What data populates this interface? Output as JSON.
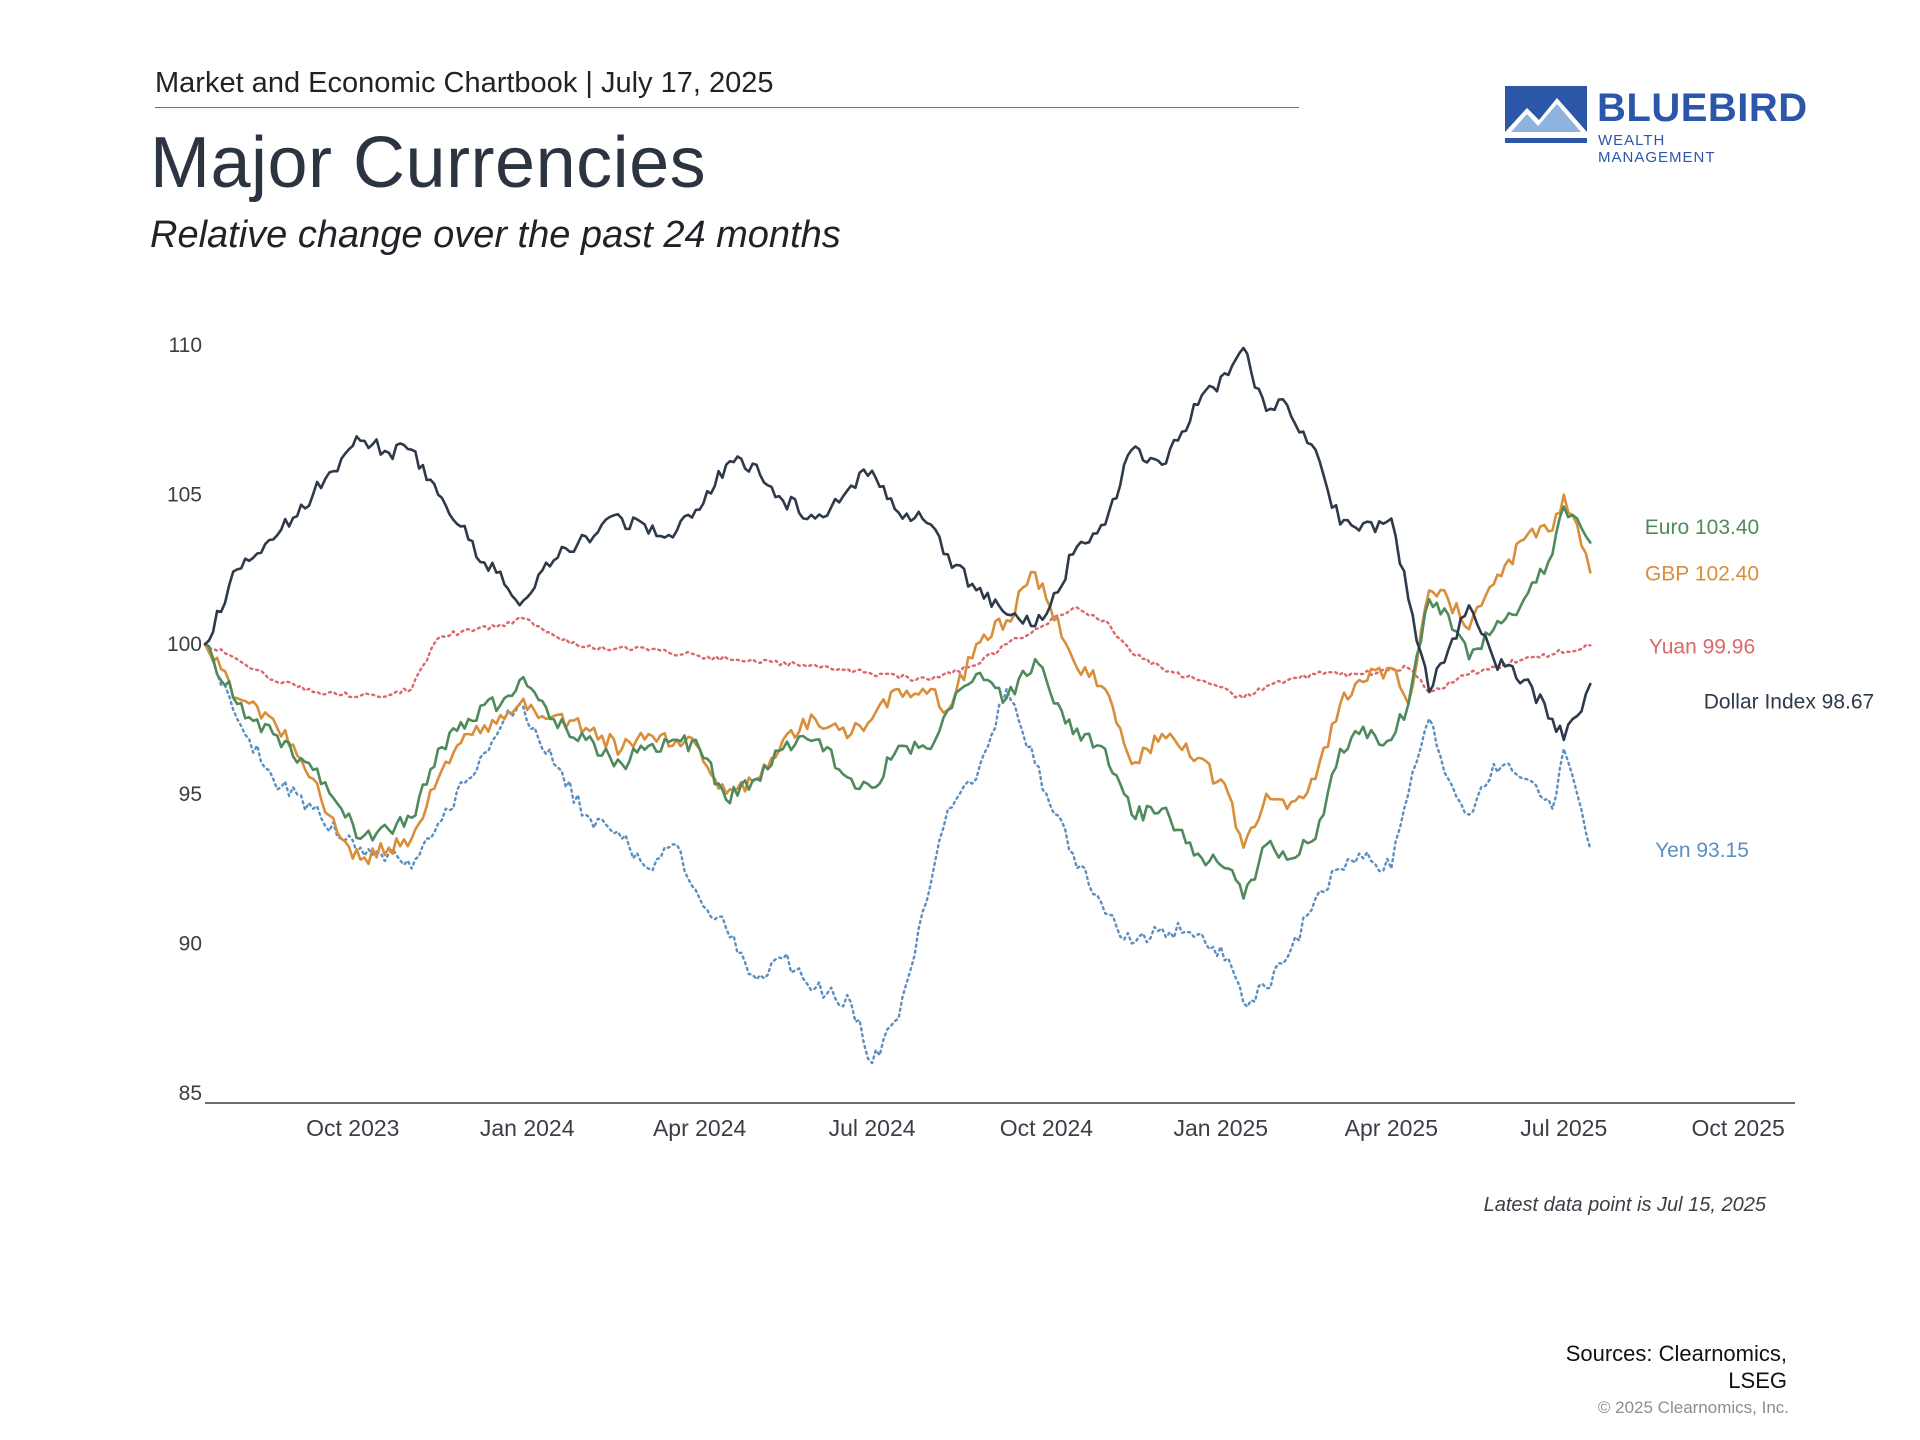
{
  "header": {
    "report": "Market and Economic Chartbook | July 17, 2025",
    "title": "Major Currencies",
    "subtitle": "Relative change over the past 24 months"
  },
  "logo": {
    "name": "BLUEBIRD",
    "tagline": "WEALTH MANAGEMENT",
    "icon": "mountain-logo-icon",
    "color": "#2c56a8"
  },
  "footer": {
    "note": "Latest data point is Jul 15, 2025",
    "sources": "Sources: Clearnomics, LSEG",
    "copyright": "© 2025 Clearnomics, Inc."
  },
  "chart_data": {
    "type": "line",
    "xlabel": "",
    "ylabel": "",
    "x_range": [
      "2023-07-15",
      "2025-10-31"
    ],
    "ylim": [
      85,
      110
    ],
    "yticks": [
      85,
      90,
      95,
      100,
      105,
      110
    ],
    "xtick_labels": [
      {
        "date": "2023-10-01",
        "label": "Oct 2023"
      },
      {
        "date": "2024-01-01",
        "label": "Jan 2024"
      },
      {
        "date": "2024-04-01",
        "label": "Apr 2024"
      },
      {
        "date": "2024-07-01",
        "label": "Jul 2024"
      },
      {
        "date": "2024-10-01",
        "label": "Oct 2024"
      },
      {
        "date": "2025-01-01",
        "label": "Jan 2025"
      },
      {
        "date": "2025-04-01",
        "label": "Apr 2025"
      },
      {
        "date": "2025-07-01",
        "label": "Jul 2025"
      },
      {
        "date": "2025-10-01",
        "label": "Oct 2025"
      }
    ],
    "grid": false,
    "legend": "end-of-line labels on the right",
    "series": [
      {
        "name": "Dollar Index",
        "end_label": "Dollar Index 98.67",
        "color": "#2e3a4a",
        "dash": "solid",
        "points": [
          [
            "2023-07-15",
            100.0
          ],
          [
            "2023-08-01",
            102.5
          ],
          [
            "2023-08-20",
            103.5
          ],
          [
            "2023-09-10",
            105.0
          ],
          [
            "2023-09-25",
            106.2
          ],
          [
            "2023-10-05",
            106.8
          ],
          [
            "2023-10-20",
            106.4
          ],
          [
            "2023-11-01",
            106.5
          ],
          [
            "2023-11-15",
            105.0
          ],
          [
            "2023-12-01",
            103.5
          ],
          [
            "2023-12-20",
            102.0
          ],
          [
            "2023-12-28",
            101.3
          ],
          [
            "2024-01-15",
            102.8
          ],
          [
            "2024-02-01",
            103.6
          ],
          [
            "2024-02-20",
            104.2
          ],
          [
            "2024-03-05",
            103.7
          ],
          [
            "2024-03-20",
            103.8
          ],
          [
            "2024-04-01",
            104.5
          ],
          [
            "2024-04-15",
            106.0
          ],
          [
            "2024-05-01",
            106.0
          ],
          [
            "2024-05-15",
            104.8
          ],
          [
            "2024-06-01",
            104.2
          ],
          [
            "2024-06-20",
            105.3
          ],
          [
            "2024-07-01",
            105.8
          ],
          [
            "2024-07-15",
            104.4
          ],
          [
            "2024-08-01",
            104.0
          ],
          [
            "2024-08-10",
            103.0
          ],
          [
            "2024-08-25",
            101.8
          ],
          [
            "2024-09-10",
            101.0
          ],
          [
            "2024-09-25",
            100.6
          ],
          [
            "2024-10-01",
            101.0
          ],
          [
            "2024-10-15",
            103.0
          ],
          [
            "2024-11-01",
            104.0
          ],
          [
            "2024-11-15",
            106.5
          ],
          [
            "2024-12-01",
            106.0
          ],
          [
            "2024-12-20",
            108.0
          ],
          [
            "2025-01-05",
            109.0
          ],
          [
            "2025-01-13",
            109.9
          ],
          [
            "2025-01-25",
            107.8
          ],
          [
            "2025-02-05",
            108.0
          ],
          [
            "2025-02-20",
            106.5
          ],
          [
            "2025-03-05",
            104.0
          ],
          [
            "2025-03-15",
            103.8
          ],
          [
            "2025-04-01",
            104.2
          ],
          [
            "2025-04-10",
            101.5
          ],
          [
            "2025-04-21",
            98.4
          ],
          [
            "2025-05-01",
            99.8
          ],
          [
            "2025-05-12",
            101.3
          ],
          [
            "2025-05-25",
            99.5
          ],
          [
            "2025-06-10",
            98.8
          ],
          [
            "2025-06-25",
            97.5
          ],
          [
            "2025-07-01",
            96.8
          ],
          [
            "2025-07-08",
            97.6
          ],
          [
            "2025-07-15",
            98.67
          ]
        ]
      },
      {
        "name": "Euro",
        "end_label": "Euro 103.40",
        "color": "#4e8a5c",
        "dash": "solid",
        "points": [
          [
            "2023-07-15",
            100.0
          ],
          [
            "2023-08-01",
            98.0
          ],
          [
            "2023-08-20",
            97.0
          ],
          [
            "2023-09-10",
            95.8
          ],
          [
            "2023-09-25",
            94.5
          ],
          [
            "2023-10-05",
            93.5
          ],
          [
            "2023-10-20",
            93.8
          ],
          [
            "2023-11-01",
            94.2
          ],
          [
            "2023-11-15",
            96.5
          ],
          [
            "2023-12-01",
            97.5
          ],
          [
            "2023-12-20",
            98.2
          ],
          [
            "2023-12-28",
            98.8
          ],
          [
            "2024-01-15",
            97.5
          ],
          [
            "2024-02-01",
            96.8
          ],
          [
            "2024-02-20",
            96.0
          ],
          [
            "2024-03-05",
            96.6
          ],
          [
            "2024-03-20",
            96.8
          ],
          [
            "2024-04-01",
            96.5
          ],
          [
            "2024-04-15",
            94.8
          ],
          [
            "2024-05-01",
            95.5
          ],
          [
            "2024-05-15",
            96.5
          ],
          [
            "2024-06-01",
            96.8
          ],
          [
            "2024-06-20",
            95.5
          ],
          [
            "2024-07-01",
            95.2
          ],
          [
            "2024-07-15",
            96.6
          ],
          [
            "2024-08-01",
            96.5
          ],
          [
            "2024-08-10",
            97.8
          ],
          [
            "2024-08-25",
            99.0
          ],
          [
            "2024-09-10",
            98.2
          ],
          [
            "2024-09-25",
            99.5
          ],
          [
            "2024-10-01",
            98.8
          ],
          [
            "2024-10-15",
            97.0
          ],
          [
            "2024-11-01",
            96.5
          ],
          [
            "2024-11-15",
            94.3
          ],
          [
            "2024-12-01",
            94.5
          ],
          [
            "2024-12-20",
            93.0
          ],
          [
            "2025-01-05",
            92.5
          ],
          [
            "2025-01-13",
            91.5
          ],
          [
            "2025-01-25",
            93.3
          ],
          [
            "2025-02-05",
            92.8
          ],
          [
            "2025-02-20",
            93.5
          ],
          [
            "2025-03-05",
            96.5
          ],
          [
            "2025-03-15",
            97.0
          ],
          [
            "2025-04-01",
            96.8
          ],
          [
            "2025-04-10",
            98.0
          ],
          [
            "2025-04-21",
            101.5
          ],
          [
            "2025-05-01",
            101.0
          ],
          [
            "2025-05-12",
            99.5
          ],
          [
            "2025-05-25",
            100.5
          ],
          [
            "2025-06-10",
            101.5
          ],
          [
            "2025-06-25",
            103.0
          ],
          [
            "2025-07-01",
            104.6
          ],
          [
            "2025-07-08",
            104.2
          ],
          [
            "2025-07-15",
            103.4
          ]
        ]
      },
      {
        "name": "GBP",
        "end_label": "GBP 102.40",
        "color": "#d98e3a",
        "dash": "solid",
        "points": [
          [
            "2023-07-15",
            100.0
          ],
          [
            "2023-08-01",
            98.2
          ],
          [
            "2023-08-20",
            97.5
          ],
          [
            "2023-09-10",
            95.5
          ],
          [
            "2023-09-25",
            93.5
          ],
          [
            "2023-10-05",
            92.8
          ],
          [
            "2023-10-20",
            93.2
          ],
          [
            "2023-11-01",
            93.5
          ],
          [
            "2023-11-15",
            95.5
          ],
          [
            "2023-12-01",
            97.0
          ],
          [
            "2023-12-20",
            97.5
          ],
          [
            "2023-12-28",
            98.0
          ],
          [
            "2024-01-15",
            97.6
          ],
          [
            "2024-02-01",
            97.2
          ],
          [
            "2024-02-20",
            96.5
          ],
          [
            "2024-03-05",
            97.0
          ],
          [
            "2024-03-20",
            96.8
          ],
          [
            "2024-04-01",
            96.5
          ],
          [
            "2024-04-15",
            95.0
          ],
          [
            "2024-05-01",
            95.5
          ],
          [
            "2024-05-15",
            96.8
          ],
          [
            "2024-06-01",
            97.5
          ],
          [
            "2024-06-20",
            97.0
          ],
          [
            "2024-07-01",
            97.5
          ],
          [
            "2024-07-15",
            98.5
          ],
          [
            "2024-08-01",
            98.5
          ],
          [
            "2024-08-10",
            97.8
          ],
          [
            "2024-08-25",
            100.0
          ],
          [
            "2024-09-10",
            100.8
          ],
          [
            "2024-09-25",
            102.4
          ],
          [
            "2024-10-01",
            101.5
          ],
          [
            "2024-10-15",
            99.5
          ],
          [
            "2024-11-01",
            98.5
          ],
          [
            "2024-11-15",
            96.0
          ],
          [
            "2024-12-01",
            97.0
          ],
          [
            "2024-12-20",
            96.2
          ],
          [
            "2025-01-05",
            95.0
          ],
          [
            "2025-01-13",
            93.2
          ],
          [
            "2025-01-25",
            95.0
          ],
          [
            "2025-02-05",
            94.5
          ],
          [
            "2025-02-20",
            95.5
          ],
          [
            "2025-03-05",
            98.0
          ],
          [
            "2025-03-15",
            98.8
          ],
          [
            "2025-04-01",
            99.2
          ],
          [
            "2025-04-10",
            98.0
          ],
          [
            "2025-04-21",
            101.8
          ],
          [
            "2025-05-01",
            101.5
          ],
          [
            "2025-05-12",
            100.5
          ],
          [
            "2025-05-25",
            102.0
          ],
          [
            "2025-06-10",
            103.5
          ],
          [
            "2025-06-25",
            103.8
          ],
          [
            "2025-07-01",
            105.0
          ],
          [
            "2025-07-08",
            104.0
          ],
          [
            "2025-07-15",
            102.4
          ]
        ]
      },
      {
        "name": "Yuan",
        "end_label": "Yuan 99.96",
        "color": "#d9696a",
        "dash": "dotted",
        "points": [
          [
            "2023-07-15",
            100.0
          ],
          [
            "2023-08-01",
            99.5
          ],
          [
            "2023-08-20",
            98.8
          ],
          [
            "2023-09-10",
            98.4
          ],
          [
            "2023-09-25",
            98.3
          ],
          [
            "2023-10-20",
            98.3
          ],
          [
            "2023-11-01",
            98.5
          ],
          [
            "2023-11-15",
            100.2
          ],
          [
            "2023-12-01",
            100.5
          ],
          [
            "2023-12-20",
            100.6
          ],
          [
            "2023-12-28",
            100.9
          ],
          [
            "2024-01-15",
            100.3
          ],
          [
            "2024-02-01",
            99.9
          ],
          [
            "2024-03-05",
            99.8
          ],
          [
            "2024-04-01",
            99.6
          ],
          [
            "2024-05-01",
            99.4
          ],
          [
            "2024-06-01",
            99.3
          ],
          [
            "2024-07-01",
            99.0
          ],
          [
            "2024-08-01",
            98.8
          ],
          [
            "2024-08-25",
            99.3
          ],
          [
            "2024-09-10",
            100.0
          ],
          [
            "2024-09-25",
            100.5
          ],
          [
            "2024-10-15",
            101.2
          ],
          [
            "2024-11-01",
            100.8
          ],
          [
            "2024-11-15",
            99.7
          ],
          [
            "2024-12-01",
            99.2
          ],
          [
            "2024-12-20",
            98.8
          ],
          [
            "2025-01-13",
            98.2
          ],
          [
            "2025-01-25",
            98.6
          ],
          [
            "2025-02-20",
            99.0
          ],
          [
            "2025-03-15",
            99.0
          ],
          [
            "2025-04-10",
            99.2
          ],
          [
            "2025-04-21",
            98.4
          ],
          [
            "2025-05-12",
            99.0
          ],
          [
            "2025-06-10",
            99.5
          ],
          [
            "2025-07-15",
            99.96
          ]
        ]
      },
      {
        "name": "Yen",
        "end_label": "Yen 93.15",
        "color": "#5b8fc1",
        "dash": "dotted",
        "points": [
          [
            "2023-07-15",
            100.0
          ],
          [
            "2023-08-01",
            97.5
          ],
          [
            "2023-08-20",
            95.5
          ],
          [
            "2023-09-10",
            94.5
          ],
          [
            "2023-09-25",
            93.5
          ],
          [
            "2023-10-05",
            93.2
          ],
          [
            "2023-10-20",
            93.0
          ],
          [
            "2023-11-01",
            92.5
          ],
          [
            "2023-11-15",
            94.0
          ],
          [
            "2023-12-01",
            95.5
          ],
          [
            "2023-12-20",
            97.5
          ],
          [
            "2023-12-28",
            98.0
          ],
          [
            "2024-01-15",
            96.0
          ],
          [
            "2024-02-01",
            94.3
          ],
          [
            "2024-02-20",
            93.5
          ],
          [
            "2024-03-05",
            92.5
          ],
          [
            "2024-03-20",
            93.3
          ],
          [
            "2024-04-01",
            91.5
          ],
          [
            "2024-04-15",
            90.5
          ],
          [
            "2024-05-01",
            88.8
          ],
          [
            "2024-05-15",
            89.5
          ],
          [
            "2024-06-01",
            88.5
          ],
          [
            "2024-06-20",
            88.0
          ],
          [
            "2024-07-01",
            86.0
          ],
          [
            "2024-07-15",
            87.5
          ],
          [
            "2024-08-01",
            92.0
          ],
          [
            "2024-08-10",
            94.5
          ],
          [
            "2024-08-25",
            95.5
          ],
          [
            "2024-09-10",
            98.5
          ],
          [
            "2024-09-25",
            96.0
          ],
          [
            "2024-10-01",
            95.0
          ],
          [
            "2024-10-15",
            93.0
          ],
          [
            "2024-11-01",
            91.0
          ],
          [
            "2024-11-15",
            90.0
          ],
          [
            "2024-12-01",
            90.5
          ],
          [
            "2024-12-20",
            90.3
          ],
          [
            "2025-01-05",
            89.5
          ],
          [
            "2025-01-13",
            88.0
          ],
          [
            "2025-01-25",
            88.5
          ],
          [
            "2025-02-05",
            89.5
          ],
          [
            "2025-02-20",
            91.5
          ],
          [
            "2025-03-05",
            92.5
          ],
          [
            "2025-03-15",
            93.0
          ],
          [
            "2025-04-01",
            92.5
          ],
          [
            "2025-04-10",
            95.0
          ],
          [
            "2025-04-21",
            97.5
          ],
          [
            "2025-05-01",
            95.5
          ],
          [
            "2025-05-12",
            94.3
          ],
          [
            "2025-05-25",
            96.0
          ],
          [
            "2025-06-10",
            95.5
          ],
          [
            "2025-06-25",
            94.5
          ],
          [
            "2025-07-01",
            96.5
          ],
          [
            "2025-07-08",
            95.0
          ],
          [
            "2025-07-15",
            93.15
          ]
        ]
      }
    ]
  }
}
